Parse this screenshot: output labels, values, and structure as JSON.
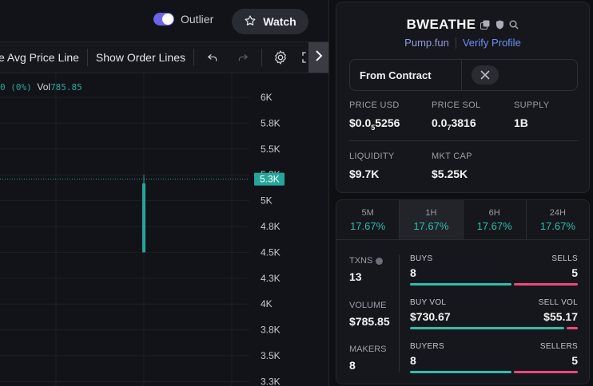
{
  "chart": {
    "outlier_label": "Outlier",
    "outlier_on": true,
    "watch_label": "Watch",
    "toolbar": {
      "avg_price_line_label": "e Avg Price Line",
      "show_order_lines_label": "Show Order Lines",
      "undo_icon": "undo-icon",
      "redo_icon": "redo-icon",
      "settings_icon": "gear-icon",
      "fullscreen_icon": "fullscreen-icon",
      "scroll_icon": "chevron-right-icon"
    },
    "legend": {
      "change": "0 (0%)",
      "vol_label": "Vol",
      "vol_value": "785.85"
    },
    "price_axis": [
      "6K",
      "5.8K",
      "5.5K",
      "5.3K",
      "5K",
      "4.8K",
      "4.5K",
      "4.3K",
      "4K",
      "3.8K",
      "3.5K",
      "3.3K"
    ],
    "current_price_label": "5.3K",
    "colors": {
      "up": "#26a69a",
      "accent": "#6b63e8"
    }
  },
  "chart_data": {
    "type": "candlestick",
    "y_tick_labels": [
      "6K",
      "5.8K",
      "5.5K",
      "5.3K",
      "5K",
      "4.8K",
      "4.5K",
      "4.3K",
      "4K",
      "3.8K",
      "3.5K",
      "3.3K"
    ],
    "ylim": [
      3300,
      6000
    ],
    "candles": [
      {
        "open": 4500,
        "close": 5200,
        "high": 5300,
        "low": 4500
      }
    ],
    "last_price": 5250,
    "grid": true
  },
  "token": {
    "name": "BWEATHE",
    "source": "Pump.fun",
    "verify_label": "Verify Profile",
    "copy_icon": "copy-icon",
    "shield_icon": "shield-icon",
    "search_icon": "search-icon",
    "contract_label": "From Contract",
    "x_icon": "x-logo-icon",
    "stats": {
      "price_usd_label": "PRICE USD",
      "price_usd_prefix": "$0.0",
      "price_usd_sub": "5",
      "price_usd_suffix": "5256",
      "price_sol_label": "PRICE SOL",
      "price_sol_prefix": "0.0",
      "price_sol_sub": "7",
      "price_sol_suffix": "3816",
      "supply_label": "SUPPLY",
      "supply_value": "1B",
      "liquidity_label": "LIQUIDITY",
      "liquidity_value": "$9.7K",
      "mktcap_label": "MKT CAP",
      "mktcap_value": "$5.25K"
    }
  },
  "txns": {
    "periods": [
      {
        "label": "5M",
        "value": "17.67%"
      },
      {
        "label": "1H",
        "value": "17.67%"
      },
      {
        "label": "6H",
        "value": "17.67%"
      },
      {
        "label": "24H",
        "value": "17.67%"
      }
    ],
    "active_period": 1,
    "txns_label": "TXNS",
    "txns_value": "13",
    "volume_label": "VOLUME",
    "volume_value": "$785.85",
    "makers_label": "MAKERS",
    "makers_value": "8",
    "buys_label": "BUYS",
    "buys_value": "8",
    "sells_label": "SELLS",
    "sells_value": "5",
    "buy_vol_label": "BUY VOL",
    "buy_vol_value": "$730.67",
    "sell_vol_label": "SELL VOL",
    "sell_vol_value": "$55.17",
    "buyers_label": "BUYERS",
    "buyers_value": "8",
    "sellers_label": "SELLERS",
    "sellers_value": "5",
    "buys_fraction": 0.615,
    "buy_vol_fraction": 0.93,
    "buyers_fraction": 0.615
  }
}
